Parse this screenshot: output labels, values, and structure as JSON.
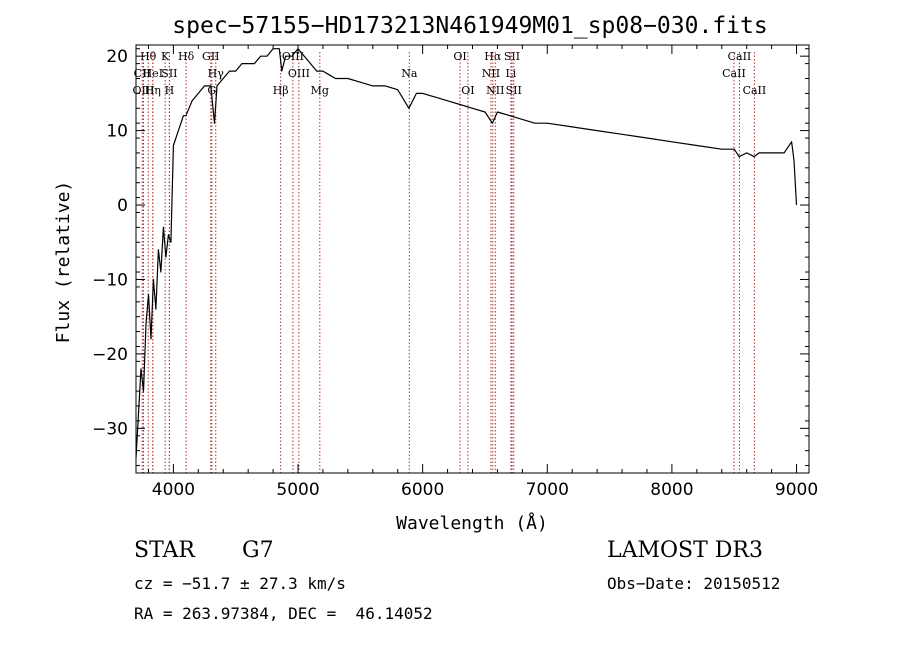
{
  "chart_data": {
    "type": "line",
    "title": "spec−57155−HD173213N461949M01_sp08−030.fits",
    "xlabel": "Wavelength (Å)",
    "ylabel": "Flux (relative)",
    "xlim": [
      3700,
      9100
    ],
    "ylim": [
      -36,
      21.5
    ],
    "xticks": [
      4000,
      5000,
      6000,
      7000,
      8000,
      9000
    ],
    "yticks": [
      -30,
      -20,
      -10,
      0,
      10,
      20
    ],
    "xtick_labels": [
      "4000",
      "5000",
      "6000",
      "7000",
      "8000",
      "9000"
    ],
    "ytick_labels": [
      "−30",
      "−20",
      "−10",
      "0",
      "10",
      "20"
    ],
    "grid": false,
    "series": [
      {
        "x": [
          3700,
          3720,
          3740,
          3760,
          3780,
          3800,
          3820,
          3840,
          3860,
          3880,
          3900,
          3920,
          3940,
          3960,
          3980,
          4000,
          4020,
          4040,
          4060,
          4080,
          4100,
          4150,
          4200,
          4250,
          4300,
          4330,
          4350,
          4400,
          4450,
          4500,
          4550,
          4600,
          4650,
          4700,
          4750,
          4800,
          4850,
          4870,
          4900,
          4950,
          5000,
          5050,
          5100,
          5150,
          5200,
          5250,
          5300,
          5400,
          5500,
          5600,
          5700,
          5800,
          5890,
          5950,
          6000,
          6100,
          6200,
          6300,
          6400,
          6500,
          6560,
          6600,
          6700,
          6800,
          6900,
          7000,
          7200,
          7400,
          7600,
          7800,
          8000,
          8200,
          8400,
          8500,
          8540,
          8600,
          8660,
          8700,
          8800,
          8900,
          8960,
          8980,
          9000
        ],
        "y": [
          -34,
          -28,
          -22,
          -25,
          -16,
          -12,
          -18,
          -10,
          -14,
          -6,
          -9,
          -3,
          -7,
          -4,
          -5,
          8,
          9,
          10,
          11,
          12,
          12,
          14,
          15,
          16,
          16,
          11,
          16,
          17,
          18,
          18,
          19,
          19,
          19,
          20,
          20,
          21,
          21,
          18,
          20,
          20,
          21,
          20,
          19,
          18,
          18,
          17.5,
          17,
          17,
          16.5,
          16,
          16,
          15.5,
          13,
          15,
          15,
          14.5,
          14,
          13.5,
          13,
          12.5,
          11,
          12.5,
          12,
          11.5,
          11,
          11,
          10.5,
          10,
          9.5,
          9,
          8.5,
          8,
          7.5,
          7.5,
          6.5,
          7,
          6.5,
          7,
          7,
          7,
          8.5,
          6,
          0
        ]
      }
    ],
    "spectral_lines": [
      {
        "label": "Hθ",
        "wl": 3798,
        "row": 1
      },
      {
        "label": "CII",
        "wl": 3750,
        "row": 2
      },
      {
        "label": "OIII",
        "wl": 3760,
        "row": 3
      },
      {
        "label": "HeI",
        "wl": 3835,
        "row": 2
      },
      {
        "label": "Hη",
        "wl": 3835,
        "row": 3
      },
      {
        "label": "K",
        "wl": 3934,
        "row": 1
      },
      {
        "label": "SII",
        "wl": 3968,
        "row": 2
      },
      {
        "label": "H",
        "wl": 3968,
        "row": 3
      },
      {
        "label": "Hδ",
        "wl": 4102,
        "row": 1
      },
      {
        "label": "GII",
        "wl": 4300,
        "row": 1
      },
      {
        "label": "Hγ",
        "wl": 4340,
        "row": 2
      },
      {
        "label": "G",
        "wl": 4308,
        "row": 3
      },
      {
        "label": "OIII",
        "wl": 4959,
        "row": 1
      },
      {
        "label": "OIII",
        "wl": 5007,
        "row": 2
      },
      {
        "label": "Hβ",
        "wl": 4861,
        "row": 3
      },
      {
        "label": "Mg",
        "wl": 5175,
        "row": 3
      },
      {
        "label": "Na",
        "wl": 5893,
        "row": 2
      },
      {
        "label": "OI",
        "wl": 6300,
        "row": 1
      },
      {
        "label": "OI",
        "wl": 6363,
        "row": 3
      },
      {
        "label": "Hα",
        "wl": 6563,
        "row": 1
      },
      {
        "label": "SII",
        "wl": 6717,
        "row": 1
      },
      {
        "label": "NII",
        "wl": 6548,
        "row": 2
      },
      {
        "label": "Li",
        "wl": 6708,
        "row": 2
      },
      {
        "label": "NII",
        "wl": 6583,
        "row": 3
      },
      {
        "label": "SII",
        "wl": 6731,
        "row": 3
      },
      {
        "label": "CaII",
        "wl": 8542,
        "row": 1
      },
      {
        "label": "CaII",
        "wl": 8498,
        "row": 2
      },
      {
        "label": "CaII",
        "wl": 8662,
        "row": 3
      }
    ]
  },
  "info": {
    "class": "STAR",
    "subclass": "G7",
    "survey": "LAMOST DR3",
    "cz": "cz = −51.7 ± 27.3 km/s",
    "obs_date": "Obs−Date: 20150512",
    "coords": "RA = 263.97384, DEC =  46.14052"
  }
}
